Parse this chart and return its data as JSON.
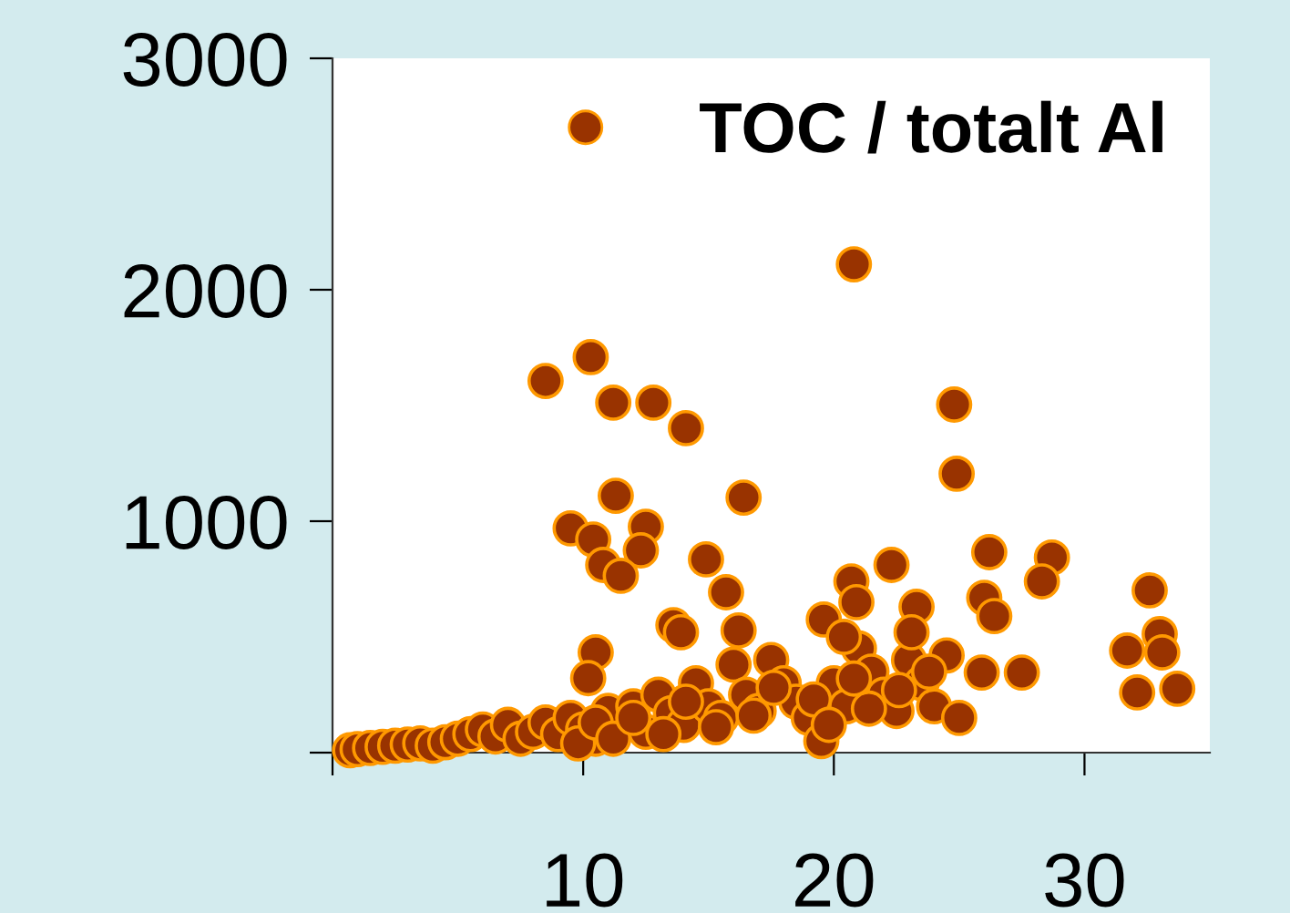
{
  "chart_data": {
    "type": "scatter",
    "xlim": [
      0,
      35
    ],
    "ylim": [
      0,
      3000
    ],
    "xticks": [
      {
        "value": 0,
        "label": null
      },
      10,
      20,
      30
    ],
    "yticks": [
      {
        "value": 0,
        "label": null
      },
      1000,
      2000,
      3000
    ],
    "grid": false,
    "legend": "top right",
    "marker": "circle",
    "series": [
      {
        "name": "TOC / totalt Al",
        "color": "#993300",
        "x": [
          0.7,
          1.0,
          1.5,
          2.0,
          2.5,
          3.0,
          3.5,
          4.0,
          4.5,
          5.0,
          5.5,
          6.0,
          6.5,
          7.0,
          7.5,
          8.0,
          8.5,
          9.0,
          9.5,
          10.0,
          10.5,
          11.0,
          12.0,
          12.5,
          13.0,
          13.5,
          14.0,
          14.5,
          15.0,
          15.5,
          16.0,
          16.5,
          17.0,
          17.5,
          18.0,
          18.5,
          19.0,
          19.5,
          20.0,
          20.5,
          21.0,
          21.5,
          22.0,
          22.5,
          23.0,
          23.5,
          24.0,
          24.5,
          25.0,
          9.8,
          10.5,
          11.2,
          12.0,
          13.2,
          14.1,
          15.3,
          16.8,
          17.6,
          19.2,
          19.8,
          20.8,
          21.4,
          22.6,
          23.8,
          8.5,
          10.3,
          11.2,
          12.8,
          14.1,
          11.3,
          16.4,
          9.5,
          10.4,
          12.5,
          12.3,
          10.8,
          11.5,
          14.9,
          15.7,
          13.6,
          13.9,
          16.2,
          10.5,
          10.2,
          20.8,
          24.8,
          24.9,
          26.2,
          28.7,
          26.0,
          28.3,
          26.4,
          32.6,
          31.7,
          33.0,
          33.1,
          32.1,
          33.7,
          27.5,
          25.9,
          20.7,
          20.9,
          22.3,
          23.3,
          19.6,
          20.4,
          23.1
        ],
        "values": [
          10,
          15,
          20,
          25,
          30,
          35,
          40,
          30,
          45,
          60,
          80,
          100,
          70,
          120,
          60,
          90,
          130,
          80,
          150,
          100,
          60,
          180,
          200,
          90,
          250,
          170,
          120,
          300,
          200,
          150,
          380,
          250,
          180,
          400,
          300,
          220,
          150,
          50,
          300,
          200,
          450,
          350,
          250,
          180,
          400,
          300,
          200,
          420,
          150,
          40,
          130,
          60,
          150,
          80,
          220,
          110,
          160,
          280,
          230,
          120,
          320,
          190,
          270,
          350,
          1606,
          1709,
          1512,
          1512,
          1402,
          1110,
          1102,
          969,
          921,
          976,
          874,
          811,
          764,
          835,
          693,
          551,
          520,
          528,
          433,
          322,
          2110,
          1504,
          1205,
          866,
          843,
          669,
          740,
          590,
          701,
          441,
          512,
          433,
          260,
          276,
          346,
          346,
          740,
          650,
          811,
          630,
          575,
          500,
          520
        ]
      }
    ]
  }
}
